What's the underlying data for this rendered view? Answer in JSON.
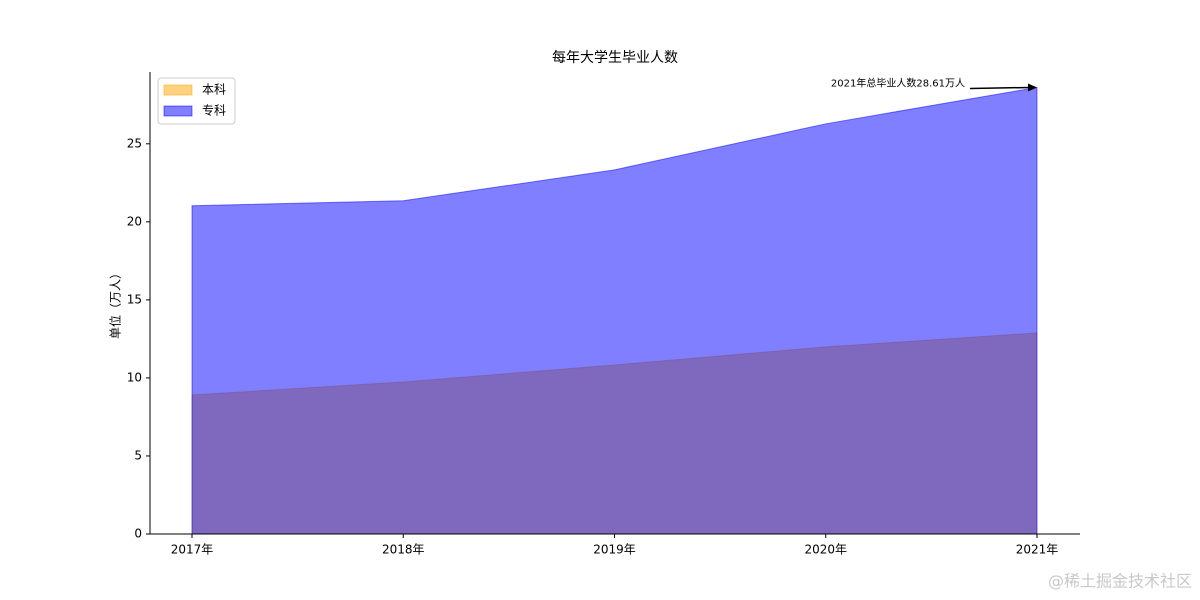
{
  "chart_data": {
    "type": "area",
    "title": "每年大学生毕业人数",
    "ylabel": "单位（万人）",
    "categories": [
      "2017年",
      "2018年",
      "2019年",
      "2020年",
      "2021年"
    ],
    "series": [
      {
        "name": "本科",
        "color": "#ffa500",
        "values": [
          8.91,
          9.74,
          10.83,
          11.99,
          12.88
        ]
      },
      {
        "name": "专科",
        "color": "#0000ff",
        "values": [
          21.03,
          21.35,
          23.33,
          26.28,
          28.61
        ]
      }
    ],
    "ylim": [
      0,
      29.6
    ],
    "yticks": [
      0,
      5,
      10,
      15,
      20,
      25
    ],
    "legend": "upper left",
    "annotation": {
      "text": "2021年总毕业人数28.61万人"
    },
    "watermark": "@稀土掘金技术社区"
  }
}
